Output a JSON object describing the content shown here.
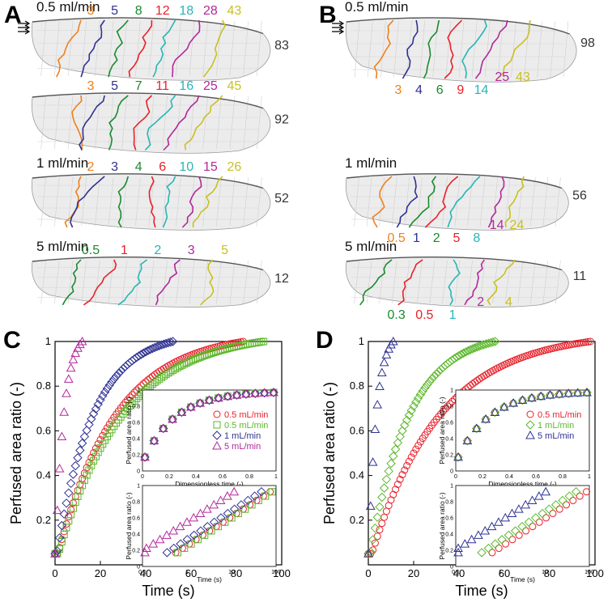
{
  "colors": {
    "c3": "#f07f1a",
    "c5": "#2e3192",
    "c8": "#1a8a2e",
    "c12": "#e8202a",
    "c18": "#27b5b5",
    "c28": "#b3279a",
    "c43": "#c9c020",
    "c83": "#333333",
    "red": "#e8202a",
    "green": "#5cb82b",
    "blue": "#2e3192",
    "purple": "#b3279a"
  },
  "panel_a": {
    "letter": "A",
    "rows": [
      {
        "flow": "0.5 ml/min",
        "fronts": [
          "3",
          "5",
          "8",
          "12",
          "18",
          "28",
          "43",
          "83"
        ]
      },
      {
        "flow": "",
        "fronts": [
          "3",
          "5",
          "7",
          "11",
          "16",
          "25",
          "45",
          "92"
        ]
      },
      {
        "flow": "1 ml/min",
        "fronts": [
          "2",
          "3",
          "4",
          "6",
          "10",
          "15",
          "26",
          "52"
        ]
      },
      {
        "flow": "5 ml/min",
        "fronts": [
          "0.5",
          "1",
          "2",
          "3",
          "5",
          "12"
        ]
      }
    ]
  },
  "panel_b": {
    "letter": "B",
    "rows": [
      {
        "flow": "0.5 ml/min",
        "fronts": [
          "3",
          "4",
          "6",
          "9",
          "14",
          "25",
          "43",
          "98"
        ]
      },
      {
        "flow": "1 ml/min",
        "fronts": [
          "0.5",
          "1",
          "2",
          "5",
          "8",
          "14",
          "24",
          "56"
        ]
      },
      {
        "flow": "5 ml/min",
        "fronts": [
          "0.3",
          "0.5",
          "1",
          "2",
          "4",
          "11"
        ]
      }
    ]
  },
  "chart_data": [
    {
      "panel": "C",
      "type": "scatter",
      "xlabel": "Time (s)",
      "ylabel": "Perfused area ratio (-)",
      "xlim": [
        0,
        100
      ],
      "ylim": [
        0,
        1
      ],
      "xticks": [
        "0",
        "20",
        "40",
        "60",
        "80",
        "100"
      ],
      "yticks": [
        "0.2",
        "0.4",
        "0.6",
        "0.8",
        "1"
      ],
      "series": [
        {
          "name": "0.5 mL/min (red)",
          "marker": "circle",
          "color": "#e8202a",
          "duration": 83
        },
        {
          "name": "0.5 mL/min (green)",
          "marker": "square",
          "color": "#5cb82b",
          "duration": 92
        },
        {
          "name": "1 mL/min",
          "marker": "diamond",
          "color": "#2e3192",
          "duration": 52
        },
        {
          "name": "5 mL/min",
          "marker": "triangle",
          "color": "#b3279a",
          "duration": 12
        }
      ],
      "inset_top": {
        "xlabel": "Dimensionless time (-)",
        "ylabel": "Perfused area ratio (-)",
        "xticks": [
          "0",
          "0.2",
          "0.4",
          "0.6",
          "0.8",
          "1"
        ],
        "yticks": [
          "0",
          "0.2",
          "0.4",
          "0.6",
          "0.8",
          "1"
        ]
      },
      "inset_bottom": {
        "xlabel": "Time (s)",
        "ylabel": "Perfused area ratio (-)",
        "xticks": [
          "0.1",
          "1",
          "10",
          "100"
        ],
        "yticks": [
          "0",
          "0.2",
          "0.4",
          "0.6",
          "0.8",
          "1"
        ]
      },
      "legend": [
        "0.5 mL/min",
        "0.5 mL/min",
        "1 mL/min",
        "5 mL/min"
      ]
    },
    {
      "panel": "D",
      "type": "scatter",
      "xlabel": "Time (s)",
      "ylabel": "Perfused area ratio (-)",
      "xlim": [
        0,
        100
      ],
      "ylim": [
        0,
        1
      ],
      "xticks": [
        "0",
        "20",
        "40",
        "60",
        "80",
        "100"
      ],
      "yticks": [
        "0.2",
        "0.4",
        "0.6",
        "0.8",
        "1"
      ],
      "series": [
        {
          "name": "0.5 mL/min",
          "marker": "circle",
          "color": "#e8202a",
          "duration": 98
        },
        {
          "name": "1 mL/min",
          "marker": "diamond",
          "color": "#5cb82b",
          "duration": 56
        },
        {
          "name": "5 mL/min",
          "marker": "triangle",
          "color": "#2e3192",
          "duration": 11
        }
      ],
      "inset_top": {
        "xlabel": "Dimensionless time (-)",
        "ylabel": "Perfused area ratio (-)",
        "xticks": [
          "0",
          "0.2",
          "0.4",
          "0.6",
          "0.8",
          "1"
        ],
        "yticks": [
          "0",
          "0.2",
          "0.4",
          "0.6",
          "0.8",
          "1"
        ]
      },
      "inset_bottom": {
        "xlabel": "Time (s)",
        "ylabel": "Perfused area ratio (-)",
        "xticks": [
          "0.1",
          "1",
          "10",
          "100"
        ],
        "yticks": [
          "0",
          "0.2",
          "0.4",
          "0.6",
          "0.8",
          "1"
        ]
      },
      "legend": [
        "0.5 mL/min",
        "1 mL/min",
        "5 mL/min"
      ]
    }
  ]
}
